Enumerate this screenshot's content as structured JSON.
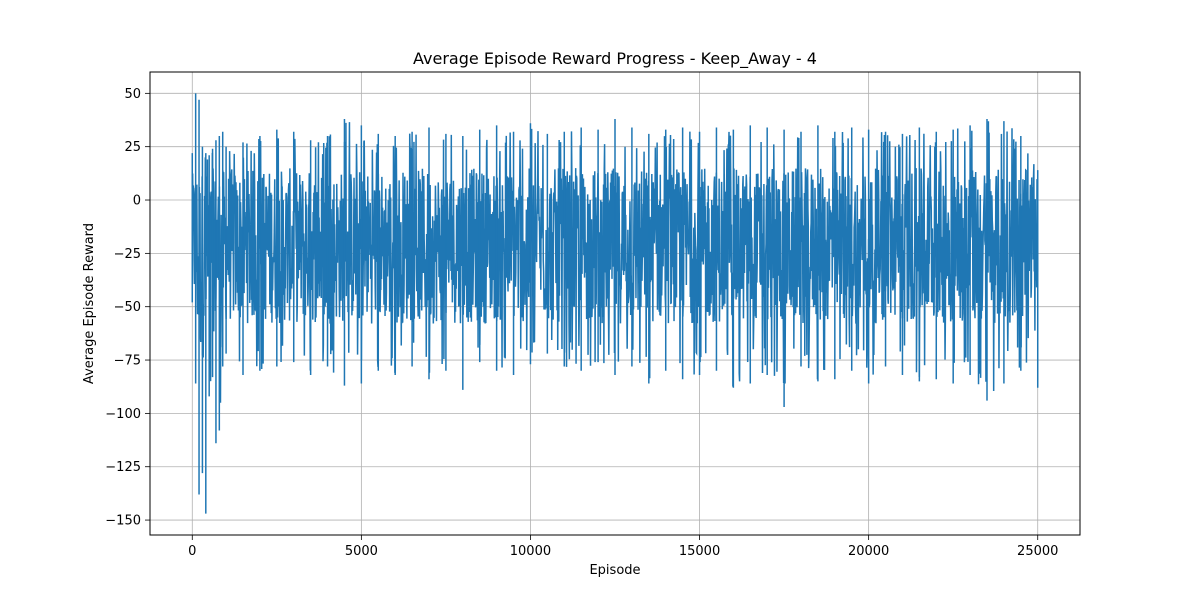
{
  "chart_data": {
    "type": "line",
    "title": "Average Episode Reward Progress - Keep_Away - 4",
    "xlabel": "Episode",
    "ylabel": "Average Episode Reward",
    "xlim": [
      -1250,
      26250
    ],
    "ylim": [
      -157,
      60
    ],
    "xticks": [
      0,
      5000,
      10000,
      15000,
      20000,
      25000
    ],
    "xtick_labels": [
      "0",
      "5000",
      "10000",
      "15000",
      "20000",
      "25000"
    ],
    "yticks": [
      50,
      25,
      0,
      -25,
      -50,
      -75,
      -100,
      -125,
      -150
    ],
    "ytick_labels": [
      "50",
      "25",
      "0",
      "−25",
      "−50",
      "−75",
      "−100",
      "−125",
      "−150"
    ],
    "grid": true,
    "series": [
      {
        "color": "#1f77b4",
        "episodes": 25000,
        "x": [
          0,
          100,
          200,
          300,
          400,
          500,
          600,
          700,
          800,
          900,
          1000,
          1500,
          2000,
          2500,
          3000,
          3500,
          4000,
          4500,
          5000,
          5500,
          6000,
          6500,
          7000,
          7500,
          8000,
          8500,
          9000,
          9500,
          10000,
          10500,
          11000,
          11500,
          12000,
          12500,
          13000,
          13500,
          14000,
          14500,
          15000,
          15500,
          16000,
          16500,
          17000,
          17500,
          18000,
          18500,
          19000,
          19500,
          20000,
          20500,
          21000,
          21500,
          22000,
          22500,
          23000,
          23500,
          24000,
          24500,
          25000
        ],
        "y_max": [
          22,
          50,
          47,
          25,
          22,
          21,
          24,
          28,
          30,
          32,
          25,
          27,
          30,
          33,
          32,
          28,
          30,
          38,
          35,
          31,
          30,
          32,
          34,
          31,
          30,
          33,
          35,
          32,
          36,
          31,
          32,
          34,
          33,
          38,
          34,
          31,
          33,
          34,
          32,
          34,
          33,
          35,
          34,
          33,
          32,
          35,
          32,
          34,
          33,
          32,
          31,
          34,
          32,
          33,
          35,
          38,
          37,
          30,
          14
        ],
        "y_min": [
          -48,
          -86,
          -138,
          -128,
          -147,
          -92,
          -83,
          -114,
          -108,
          -78,
          -72,
          -82,
          -80,
          -78,
          -76,
          -82,
          -78,
          -87,
          -86,
          -80,
          -82,
          -78,
          -84,
          -80,
          -89,
          -76,
          -80,
          -82,
          -77,
          -72,
          -78,
          -80,
          -76,
          -82,
          -78,
          -86,
          -80,
          -84,
          -82,
          -80,
          -88,
          -86,
          -82,
          -97,
          -78,
          -85,
          -84,
          -80,
          -86,
          -78,
          -82,
          -85,
          -84,
          -86,
          -82,
          -94,
          -86,
          -80,
          -88
        ],
        "y_hi": [
          12,
          18,
          18,
          16,
          15,
          15,
          15,
          15,
          15,
          15,
          15,
          15,
          15,
          15,
          15,
          15,
          15,
          15,
          15,
          15,
          15,
          15,
          15,
          15,
          15,
          15,
          15,
          15,
          15,
          15,
          15,
          15,
          15,
          15,
          15,
          15,
          15,
          15,
          15,
          15,
          15,
          15,
          15,
          15,
          15,
          15,
          15,
          15,
          15,
          15,
          15,
          15,
          15,
          15,
          15,
          15,
          15,
          15,
          12
        ],
        "y_lo": [
          -40,
          -60,
          -75,
          -75,
          -72,
          -68,
          -62,
          -62,
          -62,
          -60,
          -58,
          -58,
          -58,
          -58,
          -58,
          -58,
          -58,
          -58,
          -58,
          -58,
          -58,
          -58,
          -58,
          -58,
          -58,
          -58,
          -58,
          -58,
          -58,
          -58,
          -58,
          -58,
          -58,
          -58,
          -58,
          -58,
          -58,
          -58,
          -58,
          -58,
          -58,
          -58,
          -58,
          -58,
          -58,
          -58,
          -58,
          -58,
          -58,
          -58,
          -58,
          -58,
          -58,
          -58,
          -58,
          -58,
          -58,
          -58,
          -40
        ]
      }
    ]
  }
}
